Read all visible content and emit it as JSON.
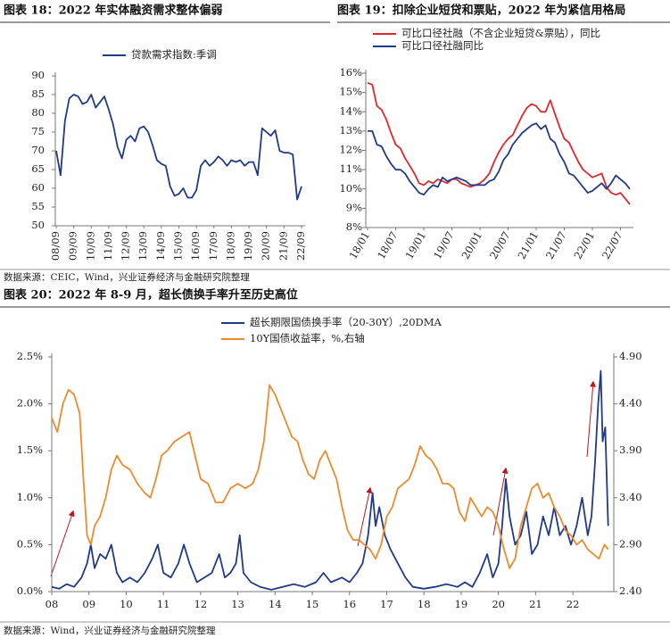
{
  "chart_data": [
    {
      "type": "line",
      "title": "图表 18：2022 年实体融资需求整体偏弱",
      "categories": [
        "08/09",
        null,
        null,
        null,
        "09/09",
        null,
        null,
        null,
        "10/09",
        null,
        null,
        null,
        "11/09",
        null,
        null,
        null,
        "12/09",
        null,
        null,
        null,
        "13/09",
        null,
        null,
        null,
        "14/09",
        null,
        null,
        null,
        "15/09",
        null,
        null,
        null,
        "16/09",
        null,
        null,
        null,
        "17/09",
        null,
        null,
        null,
        "18/09",
        null,
        null,
        null,
        "19/09",
        null,
        null,
        null,
        "20/09",
        null,
        null,
        null,
        "21/09",
        null,
        null,
        null,
        "22/09"
      ],
      "series": [
        {
          "name": "贷款需求指数:季调",
          "color": "#1f3a8a",
          "values": [
            70,
            63.5,
            78,
            84,
            85,
            84.5,
            82.5,
            83,
            85,
            81.5,
            83,
            84.5,
            81,
            77,
            71,
            68,
            73,
            74,
            72.5,
            76,
            76.5,
            75,
            71.5,
            67.5,
            66.5,
            66,
            60.5,
            58,
            58.5,
            60,
            57.5,
            57.5,
            59.5,
            66,
            67.5,
            66,
            67,
            68.5,
            67.5,
            66,
            67.5,
            67,
            67.5,
            66,
            67,
            67,
            63.5,
            76,
            75,
            74,
            75.5,
            70,
            69.5,
            69.5,
            69,
            57,
            60.5
          ]
        }
      ],
      "ylim": [
        50,
        90
      ],
      "yticks": [
        50,
        55,
        60,
        65,
        70,
        75,
        80,
        85,
        90
      ]
    },
    {
      "type": "line",
      "title": "图表 19：扣除企业短贷和票贴，2022 年为紧信用格局",
      "categories": [
        "18/01",
        null,
        null,
        null,
        null,
        null,
        "18/07",
        null,
        null,
        null,
        null,
        null,
        "19/01",
        null,
        null,
        null,
        null,
        null,
        "19/07",
        null,
        null,
        null,
        null,
        null,
        "20/01",
        null,
        null,
        null,
        null,
        null,
        "20/07",
        null,
        null,
        null,
        null,
        null,
        "21/01",
        null,
        null,
        null,
        null,
        null,
        "21/07",
        null,
        null,
        null,
        null,
        null,
        "22/01",
        null,
        null,
        null,
        null,
        null,
        "22/07",
        null,
        null
      ],
      "series": [
        {
          "name": "可比口径社融（不含企业短贷&票贴），同比",
          "color": "#e0282c",
          "values": [
            15.5,
            15.4,
            14.3,
            14.1,
            13.6,
            12.9,
            12.3,
            12.1,
            11.6,
            11.2,
            10.8,
            10.3,
            10.2,
            10.4,
            10.3,
            10.5,
            10.4,
            10.3,
            10.5,
            10.5,
            10.3,
            10.2,
            10.1,
            10.2,
            10.3,
            10.5,
            10.8,
            11.4,
            11.9,
            12.3,
            12.6,
            12.8,
            13.3,
            13.8,
            14.2,
            14.4,
            14.3,
            14.0,
            14.0,
            14.6,
            13.9,
            13.2,
            12.6,
            12.4,
            11.9,
            11.4,
            11.0,
            10.8,
            10.6,
            10.7,
            10.8,
            10.1,
            9.8,
            9.7,
            9.8,
            9.5,
            9.2
          ]
        },
        {
          "name": "可比口径社融同比",
          "color": "#1f3a8a",
          "values": [
            13.0,
            13.0,
            12.3,
            12.2,
            11.7,
            11.3,
            11.0,
            11.0,
            10.8,
            10.4,
            10.1,
            9.8,
            9.7,
            10.0,
            10.2,
            10.1,
            10.6,
            10.4,
            10.5,
            10.6,
            10.5,
            10.4,
            10.2,
            10.2,
            10.2,
            10.2,
            10.4,
            10.5,
            10.9,
            11.5,
            11.8,
            12.3,
            12.6,
            12.9,
            13.1,
            13.3,
            13.4,
            13.1,
            13.3,
            12.6,
            12.4,
            11.8,
            11.4,
            10.8,
            10.7,
            10.4,
            10.1,
            9.8,
            9.9,
            10.1,
            10.3,
            10.0,
            10.3,
            10.7,
            10.5,
            10.3,
            10.0
          ]
        }
      ],
      "ylim": [
        8,
        16
      ],
      "yticks": [
        {
          "value": 8,
          "label": "8%"
        },
        {
          "value": 9,
          "label": "9%"
        },
        {
          "value": 10,
          "label": "10%"
        },
        {
          "value": 11,
          "label": "11%"
        },
        {
          "value": 12,
          "label": "12%"
        },
        {
          "value": 13,
          "label": "13%"
        },
        {
          "value": 14,
          "label": "14%"
        },
        {
          "value": 15,
          "label": "15%"
        },
        {
          "value": 16,
          "label": "16%"
        }
      ]
    },
    {
      "type": "line",
      "title": "图表 20：2022 年 8-9 月，超长债换手率升至历史高位",
      "series": [
        {
          "name": "超长期限国债换手率（20-30Y）,20DMA",
          "color": "#1f3a8a",
          "x": [
            2008.0,
            2008.2,
            2008.4,
            2008.6,
            2008.8,
            2008.95,
            2009.05,
            2009.15,
            2009.3,
            2009.45,
            2009.6,
            2009.75,
            2009.9,
            2010.1,
            2010.3,
            2010.5,
            2010.7,
            2010.85,
            2011.0,
            2011.2,
            2011.4,
            2011.55,
            2011.7,
            2011.9,
            2012.1,
            2012.3,
            2012.5,
            2012.65,
            2012.8,
            2012.95,
            2013.05,
            2013.15,
            2013.35,
            2013.6,
            2013.9,
            2014.2,
            2014.5,
            2014.8,
            2015.1,
            2015.3,
            2015.5,
            2015.8,
            2016.0,
            2016.2,
            2016.35,
            2016.5,
            2016.62,
            2016.7,
            2016.8,
            2016.95,
            2017.1,
            2017.3,
            2017.5,
            2017.7,
            2018.0,
            2018.3,
            2018.6,
            2018.9,
            2019.1,
            2019.3,
            2019.5,
            2019.7,
            2019.85,
            2020.0,
            2020.1,
            2020.2,
            2020.3,
            2020.45,
            2020.6,
            2020.75,
            2020.9,
            2021.05,
            2021.2,
            2021.35,
            2021.5,
            2021.65,
            2021.8,
            2021.95,
            2022.1,
            2022.25,
            2022.4,
            2022.5,
            2022.6,
            2022.68,
            2022.75,
            2022.8,
            2022.87,
            2022.95
          ],
          "values": [
            0.05,
            0.03,
            0.08,
            0.05,
            0.15,
            0.3,
            0.5,
            0.25,
            0.4,
            0.35,
            0.5,
            0.2,
            0.1,
            0.15,
            0.1,
            0.2,
            0.35,
            0.5,
            0.2,
            0.15,
            0.3,
            0.5,
            0.3,
            0.1,
            0.15,
            0.2,
            0.4,
            0.15,
            0.2,
            0.3,
            0.6,
            0.2,
            0.1,
            0.05,
            0.02,
            0.05,
            0.08,
            0.05,
            0.1,
            0.2,
            0.1,
            0.15,
            0.1,
            0.2,
            0.3,
            0.6,
            1.05,
            0.7,
            0.9,
            0.6,
            0.45,
            0.3,
            0.15,
            0.05,
            0.03,
            0.05,
            0.08,
            0.05,
            0.1,
            0.05,
            0.2,
            0.4,
            0.15,
            0.3,
            0.7,
            1.2,
            0.8,
            0.5,
            0.6,
            0.85,
            0.4,
            0.5,
            0.8,
            0.6,
            0.9,
            0.6,
            0.7,
            0.5,
            0.7,
            1.0,
            0.6,
            0.8,
            1.4,
            2.0,
            2.35,
            1.6,
            1.75,
            0.7
          ]
        },
        {
          "name": "10Y国债收益率，%,右轴",
          "color": "#ee8a2e",
          "axis": "y2",
          "x": [
            2008.0,
            2008.15,
            2008.3,
            2008.45,
            2008.6,
            2008.75,
            2008.85,
            2008.95,
            2009.05,
            2009.15,
            2009.3,
            2009.45,
            2009.6,
            2009.75,
            2009.9,
            2010.1,
            2010.3,
            2010.5,
            2010.65,
            2010.8,
            2010.95,
            2011.1,
            2011.3,
            2011.5,
            2011.7,
            2011.85,
            2012.0,
            2012.2,
            2012.4,
            2012.6,
            2012.8,
            2013.0,
            2013.2,
            2013.4,
            2013.55,
            2013.7,
            2013.85,
            2014.0,
            2014.15,
            2014.3,
            2014.45,
            2014.6,
            2014.75,
            2014.9,
            2015.05,
            2015.2,
            2015.35,
            2015.5,
            2015.65,
            2015.8,
            2015.95,
            2016.1,
            2016.25,
            2016.4,
            2016.55,
            2016.7,
            2016.85,
            2017.0,
            2017.15,
            2017.3,
            2017.45,
            2017.6,
            2017.75,
            2017.9,
            2018.05,
            2018.2,
            2018.35,
            2018.5,
            2018.65,
            2018.8,
            2018.95,
            2019.1,
            2019.25,
            2019.4,
            2019.55,
            2019.7,
            2019.85,
            2020.0,
            2020.15,
            2020.3,
            2020.45,
            2020.6,
            2020.75,
            2020.9,
            2021.05,
            2021.2,
            2021.35,
            2021.5,
            2021.65,
            2021.8,
            2021.95,
            2022.1,
            2022.25,
            2022.4,
            2022.55,
            2022.7,
            2022.85,
            2022.95
          ],
          "values": [
            4.25,
            4.1,
            4.4,
            4.55,
            4.5,
            4.3,
            3.6,
            3.0,
            2.9,
            3.1,
            3.2,
            3.4,
            3.7,
            3.85,
            3.75,
            3.7,
            3.55,
            3.45,
            3.4,
            3.6,
            3.85,
            3.9,
            4.0,
            4.05,
            4.1,
            3.85,
            3.6,
            3.55,
            3.35,
            3.35,
            3.5,
            3.55,
            3.5,
            3.55,
            3.7,
            4.0,
            4.6,
            4.5,
            4.35,
            4.2,
            4.05,
            4.0,
            3.8,
            3.65,
            3.6,
            3.8,
            3.9,
            3.75,
            3.6,
            3.3,
            3.05,
            2.95,
            2.95,
            2.9,
            2.85,
            2.75,
            2.9,
            3.2,
            3.3,
            3.5,
            3.55,
            3.6,
            3.75,
            3.95,
            3.85,
            3.8,
            3.7,
            3.55,
            3.55,
            3.5,
            3.25,
            3.15,
            3.4,
            3.3,
            3.2,
            3.3,
            3.25,
            3.1,
            2.85,
            2.65,
            2.75,
            3.1,
            3.3,
            3.5,
            3.55,
            3.4,
            3.45,
            3.3,
            3.2,
            3.05,
            3.0,
            2.9,
            2.95,
            2.85,
            2.8,
            2.75,
            2.9,
            2.85
          ]
        }
      ],
      "xlim": [
        2008,
        2023.1
      ],
      "xticks": [
        {
          "value": 2008,
          "label": "08"
        },
        {
          "value": 2009,
          "label": "09"
        },
        {
          "value": 2010,
          "label": "10"
        },
        {
          "value": 2011,
          "label": "11"
        },
        {
          "value": 2012,
          "label": "12"
        },
        {
          "value": 2013,
          "label": "13"
        },
        {
          "value": 2014,
          "label": "14"
        },
        {
          "value": 2015,
          "label": "15"
        },
        {
          "value": 2016,
          "label": "16"
        },
        {
          "value": 2017,
          "label": "17"
        },
        {
          "value": 2018,
          "label": "18"
        },
        {
          "value": 2019,
          "label": "19"
        },
        {
          "value": 2020,
          "label": "20"
        },
        {
          "value": 2021,
          "label": "21"
        },
        {
          "value": 2022,
          "label": "22"
        }
      ],
      "ylim": [
        0,
        2.5
      ],
      "yticks": [
        {
          "value": 0,
          "label": "0.0%"
        },
        {
          "value": 0.5,
          "label": "0.5%"
        },
        {
          "value": 1,
          "label": "1.0%"
        },
        {
          "value": 1.5,
          "label": "1.5%"
        },
        {
          "value": 2,
          "label": "2.0%"
        },
        {
          "value": 2.5,
          "label": "2.5%"
        }
      ],
      "y2lim": [
        2.4,
        4.9
      ],
      "y2ticks": [
        {
          "value": 2.4,
          "label": "2.40"
        },
        {
          "value": 2.9,
          "label": "2.90"
        },
        {
          "value": 3.4,
          "label": "3.40"
        },
        {
          "value": 3.9,
          "label": "3.90"
        },
        {
          "value": 4.4,
          "label": "4.40"
        },
        {
          "value": 4.9,
          "label": "4.90"
        }
      ]
    }
  ],
  "sources": [
    "数据来源：CEIC，Wind，兴业证券经济与金融研究院整理",
    "数据来源：Wind，兴业证券经济与金融研究院整理"
  ]
}
